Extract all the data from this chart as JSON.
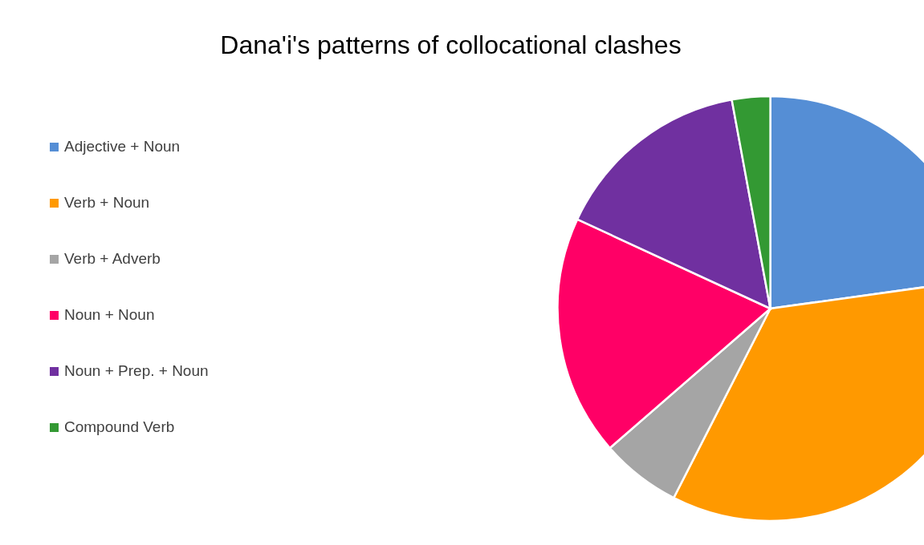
{
  "chart_data": {
    "type": "pie",
    "title": "Dana'i's patterns of collocational clashes",
    "categories": [
      "Adjective + Noun",
      "Verb + Noun",
      "Verb + Adverb",
      "Noun + Noun",
      "Noun + Prep. + Noun",
      "Compound Verb"
    ],
    "values": [
      22.8,
      34.7,
      6.1,
      18.3,
      15.2,
      2.9
    ],
    "colors": [
      "#558ed5",
      "#ff9900",
      "#a5a5a5",
      "#ff0066",
      "#7030a0",
      "#339933"
    ],
    "legend": "left"
  }
}
